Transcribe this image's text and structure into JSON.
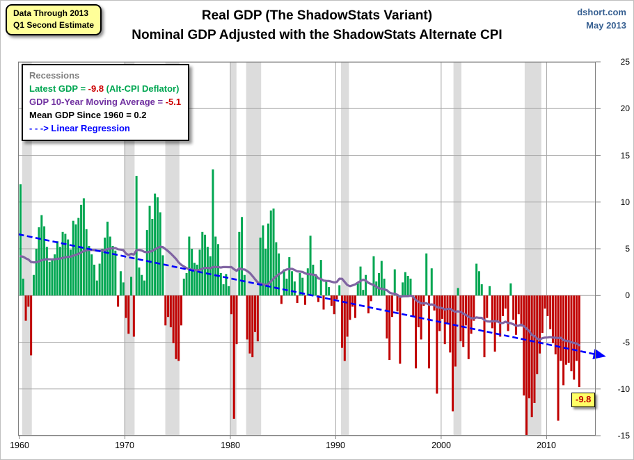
{
  "badge": {
    "line1": "Data Through 2013",
    "line2": "Q1 Second Estimate"
  },
  "title": {
    "line1": "Real GDP (The ShadowStats Variant)",
    "line2": "Nominal GDP Adjusted with the ShadowStats Alternate CPI"
  },
  "source": {
    "site": "dshort.com",
    "date": "May 2013"
  },
  "legend": {
    "recessions_label": "Recessions",
    "latest_prefix": "Latest GDP = ",
    "latest_value": "-9.8",
    "latest_suffix": " (Alt-CPI Deflator)",
    "ma_prefix": "GDP 10-Year Moving Average = ",
    "ma_value": "-5.1",
    "mean_label": "Mean GDP  Since 1960 = 0.2",
    "regression_label": "- - -> Linear Regression"
  },
  "callout": {
    "label": "-9.8"
  },
  "colors": {
    "positive_bar": "#00A651",
    "negative_bar": "#C00000",
    "moving_average": "#8064A2",
    "regression": "#0000FF",
    "recession_band": "#DCDCDC",
    "gridline": "#A6A6A6",
    "frame": "#808080",
    "source_blue": "#365F91",
    "callout_bg": "#FFFF66",
    "badge_bg": "#FFFF99"
  },
  "chart_data": {
    "type": "bar",
    "title": "Real GDP (The ShadowStats Variant)",
    "subtitle": "Nominal GDP Adjusted with the ShadowStats Alternate CPI",
    "x_start": 1960.0,
    "x_step": 0.25,
    "x_end": 2013.0,
    "ylim": [
      -15,
      25
    ],
    "yticks": [
      25,
      20,
      15,
      10,
      5,
      0,
      -5,
      -10,
      -15
    ],
    "xticks": [
      1960,
      1970,
      1980,
      1990,
      2000,
      2010
    ],
    "grid": true,
    "latest_value": -9.8,
    "mean_since_1960": 0.2,
    "ma_window_quarters": 40,
    "ma_latest": -5.1,
    "ma_pre1960_assumed_mean": 4.0,
    "regression": {
      "x1": 1959.9,
      "v1": 6.55,
      "x2": 2015.3,
      "v2": -6.45
    },
    "recessions": [
      [
        1960.25,
        1961.17
      ],
      [
        1969.92,
        1970.92
      ],
      [
        1973.83,
        1975.17
      ],
      [
        1980.0,
        1980.58
      ],
      [
        1981.5,
        1982.92
      ],
      [
        1990.5,
        1991.25
      ],
      [
        2001.17,
        2001.92
      ],
      [
        2007.92,
        2009.5
      ]
    ],
    "values": [
      11.9,
      1.8,
      -2.7,
      -1.2,
      -6.4,
      2.2,
      5.0,
      7.3,
      8.6,
      7.4,
      5.2,
      3.6,
      3.9,
      4.4,
      5.8,
      5.2,
      6.8,
      6.6,
      6.0,
      4.9,
      8.0,
      7.6,
      8.3,
      9.7,
      10.4,
      7.1,
      5.3,
      4.4,
      3.3,
      1.6,
      3.4,
      5.0,
      6.2,
      7.9,
      6.3,
      5.3,
      4.8,
      -1.2,
      2.6,
      1.4,
      -2.4,
      -4.1,
      2.0,
      -4.4,
      12.8,
      3.0,
      2.2,
      1.6,
      7.0,
      9.6,
      8.2,
      10.9,
      10.5,
      8.9,
      4.3,
      -3.2,
      -2.3,
      -3.4,
      -5.1,
      -6.8,
      -7.0,
      -3.2,
      1.8,
      2.4,
      6.3,
      5.0,
      3.5,
      3.3,
      4.9,
      6.8,
      6.5,
      5.2,
      4.2,
      13.5,
      6.3,
      5.5,
      2.4,
      1.2,
      2.3,
      1.0,
      -2.0,
      -13.2,
      -5.2,
      6.8,
      8.4,
      2.2,
      -4.7,
      -6.2,
      -6.6,
      -3.9,
      -4.9,
      6.2,
      7.5,
      5.0,
      7.7,
      9.1,
      9.3,
      5.7,
      4.5,
      -0.9,
      2.8,
      1.8,
      4.1,
      2.6,
      1.5,
      -0.8,
      2.4,
      1.9,
      -1.0,
      2.9,
      6.4,
      3.3,
      2.3,
      -0.7,
      3.8,
      -1.5,
      1.6,
      0.9,
      -1.1,
      -2.0,
      -0.4,
      1.1,
      -5.6,
      -7.0,
      -4.4,
      -2.6,
      -1.2,
      -2.4,
      1.3,
      3.1,
      0.6,
      2.2,
      -1.9,
      -0.6,
      4.2,
      1.5,
      2.4,
      3.7,
      1.8,
      -4.6,
      -6.9,
      -2.3,
      2.8,
      -1.7,
      -7.3,
      1.4,
      2.5,
      2.1,
      1.8,
      -2.2,
      -7.8,
      -3.4,
      -4.7,
      -1.1,
      4.5,
      -7.8,
      2.9,
      -1.6,
      -10.5,
      -3.8,
      -2.5,
      -5.2,
      -3.0,
      -6.1,
      -12.4,
      -7.6,
      0.8,
      -4.9,
      -5.5,
      -3.2,
      -6.8,
      -4.1,
      -2.7,
      3.4,
      2.6,
      1.2,
      -6.6,
      -2.4,
      1.0,
      -3.5,
      -6.0,
      -2.9,
      -4.4,
      -2.2,
      -1.4,
      -3.8,
      1.3,
      -2.6,
      -4.2,
      -2.0,
      -3.3,
      -10.7,
      -15.0,
      -11.0,
      -13.0,
      -11.5,
      -8.4,
      -6.2,
      -4.0,
      -1.4,
      -2.2,
      -3.6,
      -5.1,
      -6.3,
      -13.4,
      -7.0,
      -9.6,
      -7.4,
      -7.2,
      -8.1,
      -9.0,
      -7.0,
      -9.8
    ]
  }
}
